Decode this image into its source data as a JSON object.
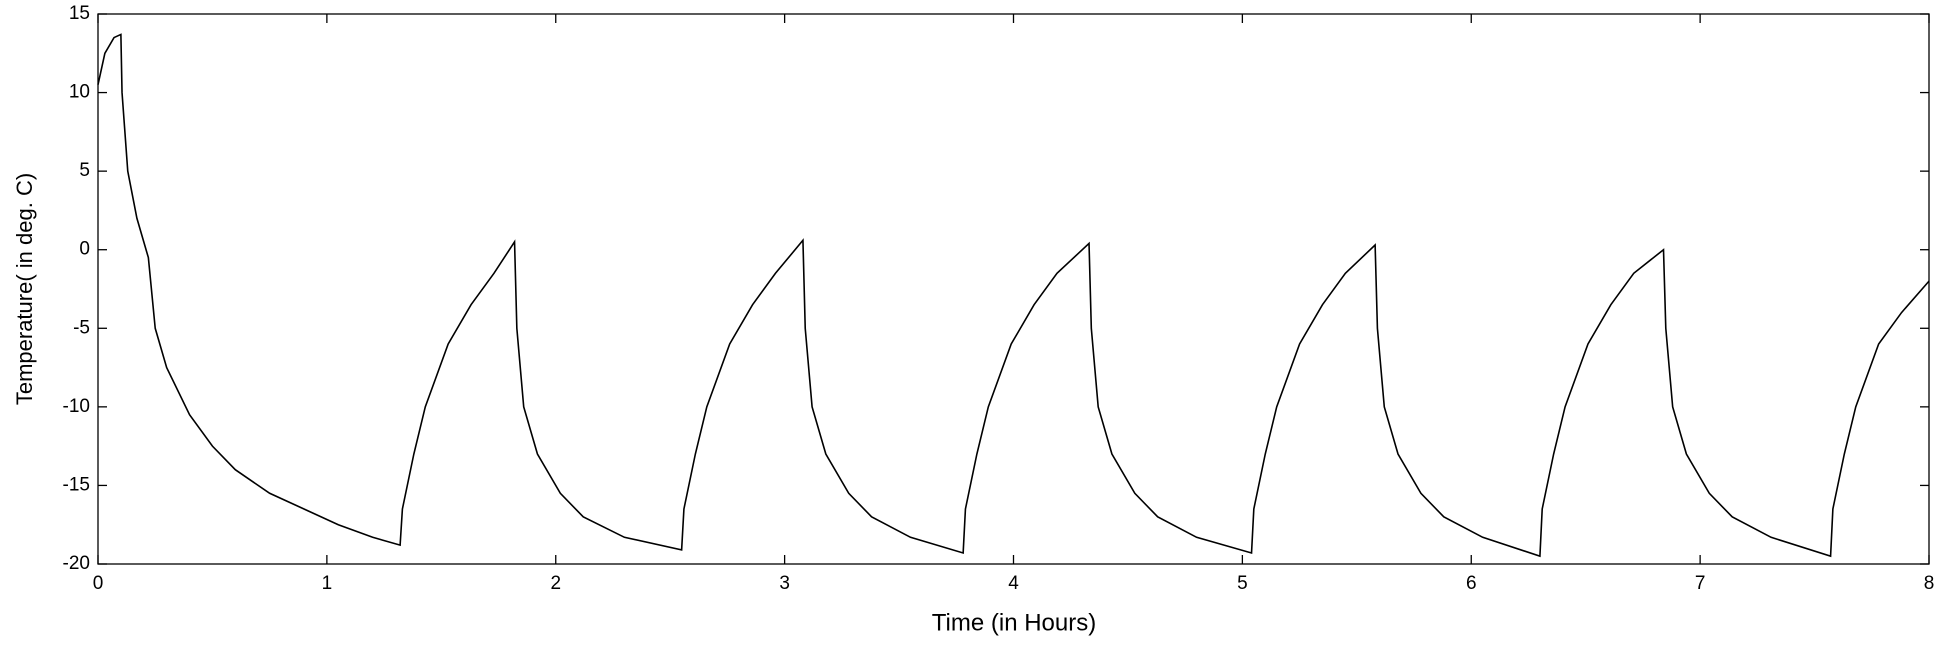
{
  "chart_data": {
    "type": "line",
    "x_label": "Time (in Hours)",
    "y_label": "Temperature( in deg. C)",
    "xlim": [
      0,
      8
    ],
    "ylim": [
      -20,
      15
    ],
    "xticks": [
      0,
      1,
      2,
      3,
      4,
      5,
      6,
      7,
      8
    ],
    "yticks": [
      -20,
      -15,
      -10,
      -5,
      0,
      5,
      10,
      15
    ],
    "grid": false,
    "series": [
      {
        "color": "#000000",
        "x": [
          0,
          0.03,
          0.07,
          0.1,
          0.105,
          0.13,
          0.17,
          0.2,
          0.22,
          0.25,
          0.3,
          0.4,
          0.5,
          0.6,
          0.75,
          0.9,
          1.05,
          1.2,
          1.32,
          1.33,
          1.38,
          1.43,
          1.53,
          1.63,
          1.73,
          1.82,
          1.83,
          1.86,
          1.92,
          2.02,
          2.12,
          2.3,
          2.55,
          2.56,
          2.61,
          2.66,
          2.76,
          2.86,
          2.96,
          3.08,
          3.09,
          3.12,
          3.18,
          3.28,
          3.38,
          3.55,
          3.78,
          3.79,
          3.84,
          3.89,
          3.99,
          4.09,
          4.19,
          4.33,
          4.34,
          4.37,
          4.43,
          4.53,
          4.63,
          4.8,
          5.04,
          5.05,
          5.1,
          5.15,
          5.25,
          5.35,
          5.45,
          5.58,
          5.59,
          5.62,
          5.68,
          5.78,
          5.88,
          6.05,
          6.3,
          6.31,
          6.36,
          6.41,
          6.51,
          6.61,
          6.71,
          6.84,
          6.85,
          6.88,
          6.94,
          7.04,
          7.14,
          7.31,
          7.57,
          7.58,
          7.63,
          7.68,
          7.78,
          7.88,
          8.0
        ],
        "values": [
          10.5,
          12.5,
          13.5,
          13.7,
          10,
          5,
          2,
          0.5,
          -0.5,
          -5,
          -7.5,
          -10.5,
          -12.5,
          -14,
          -15.5,
          -16.5,
          -17.5,
          -18.3,
          -18.8,
          -16.5,
          -13,
          -10,
          -6,
          -3.5,
          -1.5,
          0.5,
          -5,
          -10,
          -13,
          -15.5,
          -17,
          -18.3,
          -19.1,
          -16.5,
          -13,
          -10,
          -6,
          -3.5,
          -1.5,
          0.6,
          -5,
          -10,
          -13,
          -15.5,
          -17,
          -18.3,
          -19.3,
          -16.5,
          -13,
          -10,
          -6,
          -3.5,
          -1.5,
          0.4,
          -5,
          -10,
          -13,
          -15.5,
          -17,
          -18.3,
          -19.3,
          -16.5,
          -13,
          -10,
          -6,
          -3.5,
          -1.5,
          0.3,
          -5,
          -10,
          -13,
          -15.5,
          -17,
          -18.3,
          -19.5,
          -16.5,
          -13,
          -10,
          -6,
          -3.5,
          -1.5,
          0,
          -5,
          -10,
          -13,
          -15.5,
          -17,
          -18.3,
          -19.5,
          -16.5,
          -13,
          -10,
          -6,
          -4,
          -2
        ]
      }
    ]
  }
}
